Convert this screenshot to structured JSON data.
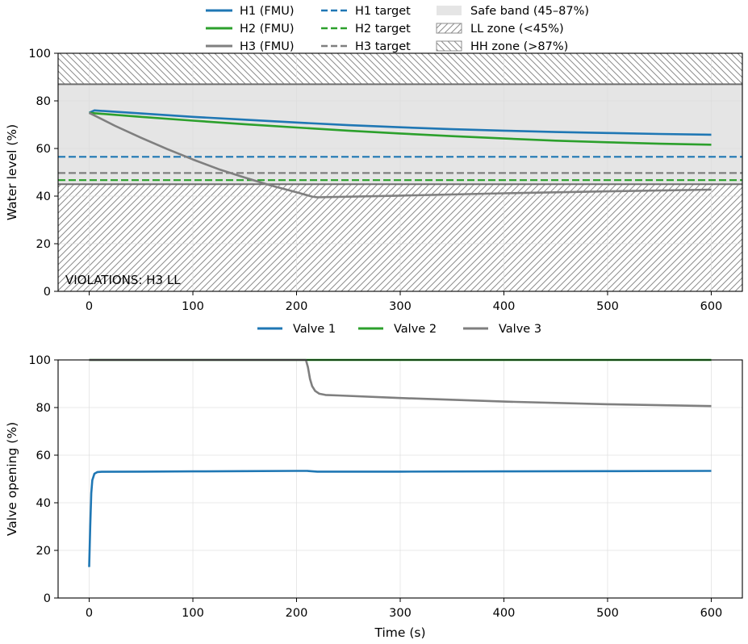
{
  "chart_data": [
    {
      "type": "line",
      "xlabel": "",
      "ylabel": "Water level (%)",
      "xlim": [
        -30,
        630
      ],
      "ylim": [
        0,
        100
      ],
      "xticks": [
        0,
        100,
        200,
        300,
        400,
        500,
        600
      ],
      "yticks": [
        0,
        20,
        40,
        60,
        80,
        100
      ],
      "grid": true,
      "legend_placement": "above",
      "annotation": "VIOLATIONS: H3 LL",
      "bands": [
        {
          "name": "Safe band (45–87%)",
          "range": [
            45,
            87
          ],
          "fill": "#e5e5e5"
        },
        {
          "name": "LL zone (<45%)",
          "range": [
            0,
            45
          ],
          "hatch": "/"
        },
        {
          "name": "HH zone (>87%)",
          "range": [
            87,
            100
          ],
          "hatch": "\\"
        }
      ],
      "series": [
        {
          "name": "H1 (FMU)",
          "color": "#1f77b4",
          "style": "solid",
          "x": [
            0,
            5,
            50,
            100,
            150,
            200,
            250,
            300,
            350,
            400,
            450,
            500,
            550,
            600
          ],
          "y": [
            75,
            76,
            74.7,
            73.3,
            72.1,
            70.9,
            69.8,
            68.9,
            68.1,
            67.5,
            66.9,
            66.5,
            66.1,
            65.8
          ]
        },
        {
          "name": "H2 (FMU)",
          "color": "#2ca02c",
          "style": "solid",
          "x": [
            0,
            50,
            100,
            150,
            200,
            250,
            300,
            350,
            400,
            450,
            500,
            550,
            600
          ],
          "y": [
            75,
            73.3,
            71.7,
            70.2,
            68.8,
            67.5,
            66.3,
            65.2,
            64.2,
            63.3,
            62.6,
            62.0,
            61.6
          ]
        },
        {
          "name": "H3 (FMU)",
          "color": "#7f7f7f",
          "style": "solid",
          "x": [
            0,
            25,
            50,
            75,
            100,
            125,
            150,
            175,
            200,
            215,
            220,
            300,
            400,
            500,
            600
          ],
          "y": [
            75,
            69.5,
            64.5,
            59.8,
            55.4,
            51.3,
            47.8,
            44.5,
            41.6,
            39.8,
            39.5,
            40.2,
            41.2,
            42.0,
            42.7
          ]
        },
        {
          "name": "H1 target",
          "color": "#1f77b4",
          "style": "dashed",
          "x": [
            -30,
            630
          ],
          "y": [
            56.5,
            56.5
          ]
        },
        {
          "name": "H2 target",
          "color": "#2ca02c",
          "style": "dashed",
          "x": [
            -30,
            630
          ],
          "y": [
            46.7,
            46.7
          ]
        },
        {
          "name": "H3 target",
          "color": "#7f7f7f",
          "style": "dashed",
          "x": [
            -30,
            630
          ],
          "y": [
            49.7,
            49.7
          ]
        }
      ]
    },
    {
      "type": "line",
      "xlabel": "Time (s)",
      "ylabel": "Valve opening (%)",
      "xlim": [
        -30,
        630
      ],
      "ylim": [
        0,
        100
      ],
      "xticks": [
        0,
        100,
        200,
        300,
        400,
        500,
        600
      ],
      "yticks": [
        0,
        20,
        40,
        60,
        80,
        100
      ],
      "grid": true,
      "legend_placement": "above",
      "series": [
        {
          "name": "Valve 1",
          "color": "#1f77b4",
          "style": "solid",
          "x": [
            0,
            1,
            2,
            3,
            5,
            8,
            12,
            50,
            100,
            150,
            200,
            210,
            220,
            300,
            400,
            500,
            600
          ],
          "y": [
            13,
            30,
            44,
            49.5,
            52.2,
            52.9,
            53.0,
            53.1,
            53.2,
            53.3,
            53.4,
            53.4,
            53.1,
            53.1,
            53.2,
            53.3,
            53.4
          ]
        },
        {
          "name": "Valve 2",
          "color": "#2ca02c",
          "style": "solid",
          "x": [
            0,
            600
          ],
          "y": [
            100,
            100
          ]
        },
        {
          "name": "Valve 3",
          "color": "#7f7f7f",
          "style": "solid",
          "x": [
            0,
            209,
            211,
            213,
            215,
            218,
            222,
            228,
            240,
            300,
            400,
            500,
            600
          ],
          "y": [
            100,
            100,
            97,
            92,
            89,
            87,
            85.8,
            85.3,
            85.1,
            84.0,
            82.5,
            81.4,
            80.6
          ]
        }
      ]
    }
  ],
  "colors": {
    "h1": "#1f77b4",
    "h2": "#2ca02c",
    "h3": "#7f7f7f",
    "safe": "#e5e5e5",
    "hatch": "#8c8c8c",
    "grid": "#dcdcdc"
  }
}
